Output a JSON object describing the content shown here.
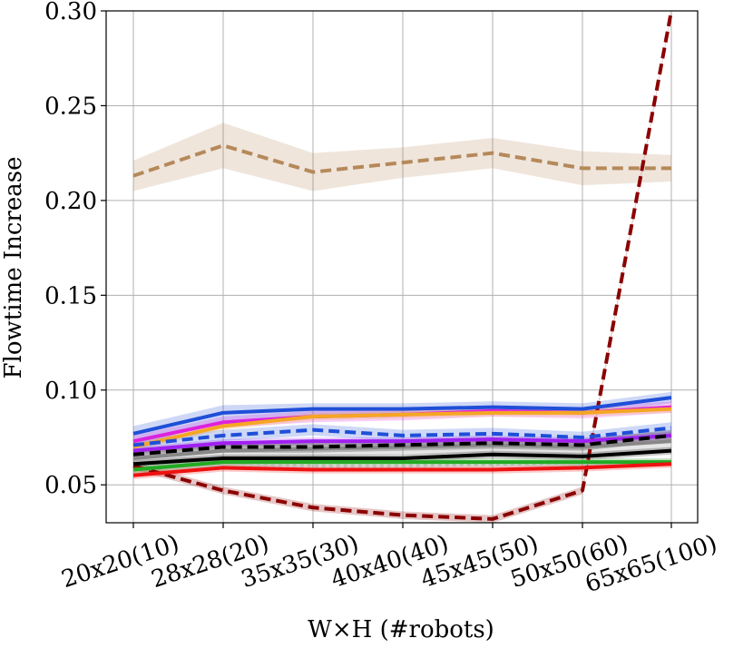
{
  "chart_data": {
    "type": "line",
    "title": "",
    "xlabel": "W×H (#robots)",
    "ylabel": "Flowtime Increase",
    "categories": [
      "20x20(10)",
      "28x28(20)",
      "35x35(30)",
      "40x40(40)",
      "45x45(50)",
      "50x50(60)",
      "65x65(100)"
    ],
    "ylim": [
      0.03,
      0.3
    ],
    "yticks": [
      "0.05",
      "0.10",
      "0.15",
      "0.20",
      "0.25",
      "0.30"
    ],
    "grid": true,
    "legend": "none",
    "series": [
      {
        "color": "#8b0000",
        "style": "dashed",
        "values": [
          0.06,
          0.047,
          0.038,
          0.034,
          0.032,
          0.047,
          0.3
        ],
        "band": [
          0.002,
          0.002,
          0.002,
          0.002,
          0.002,
          0.002,
          0.002
        ]
      },
      {
        "color": "#b5895a",
        "style": "dashed",
        "values": [
          0.213,
          0.229,
          0.215,
          0.22,
          0.225,
          0.217,
          0.217
        ],
        "band": [
          0.008,
          0.012,
          0.01,
          0.008,
          0.008,
          0.009,
          0.007
        ]
      },
      {
        "color": "#1f4fd8",
        "style": "solid",
        "values": [
          0.077,
          0.088,
          0.09,
          0.09,
          0.091,
          0.09,
          0.096
        ],
        "band": [
          0.004,
          0.004,
          0.003,
          0.003,
          0.003,
          0.003,
          0.003
        ]
      },
      {
        "color": "#dd22dd",
        "style": "solid",
        "values": [
          0.073,
          0.083,
          0.086,
          0.087,
          0.089,
          0.088,
          0.091
        ],
        "band": [
          0.003,
          0.003,
          0.003,
          0.003,
          0.003,
          0.003,
          0.003
        ]
      },
      {
        "color": "#f5a623",
        "style": "solid",
        "values": [
          0.07,
          0.081,
          0.086,
          0.087,
          0.088,
          0.088,
          0.09
        ],
        "band": [
          0.002,
          0.002,
          0.002,
          0.002,
          0.002,
          0.002,
          0.002
        ]
      },
      {
        "color": "#1f4fd8",
        "style": "dashed",
        "values": [
          0.071,
          0.076,
          0.079,
          0.076,
          0.077,
          0.075,
          0.08
        ],
        "band": [
          0.003,
          0.003,
          0.003,
          0.003,
          0.003,
          0.003,
          0.003
        ]
      },
      {
        "color": "#a020f0",
        "style": "solid",
        "values": [
          0.068,
          0.072,
          0.073,
          0.073,
          0.074,
          0.073,
          0.076
        ],
        "band": [
          0.002,
          0.002,
          0.002,
          0.002,
          0.002,
          0.002,
          0.002
        ]
      },
      {
        "color": "#888888",
        "style": "solid",
        "values": [
          0.064,
          0.068,
          0.069,
          0.07,
          0.071,
          0.07,
          0.073
        ],
        "band": [
          0.004,
          0.004,
          0.004,
          0.004,
          0.004,
          0.004,
          0.004
        ]
      },
      {
        "color": "#000000",
        "style": "dashed",
        "values": [
          0.066,
          0.07,
          0.07,
          0.071,
          0.072,
          0.071,
          0.076
        ],
        "band": [
          0.003,
          0.003,
          0.003,
          0.003,
          0.003,
          0.003,
          0.003
        ]
      },
      {
        "color": "#000000",
        "style": "solid",
        "values": [
          0.061,
          0.064,
          0.064,
          0.064,
          0.066,
          0.065,
          0.068
        ],
        "band": [
          0.002,
          0.002,
          0.002,
          0.002,
          0.002,
          0.002,
          0.002
        ]
      },
      {
        "color": "#bbbbbb",
        "style": "dotted",
        "values": [
          0.058,
          0.061,
          0.06,
          0.06,
          0.061,
          0.061,
          0.062
        ],
        "band": [
          0.002,
          0.002,
          0.002,
          0.002,
          0.002,
          0.002,
          0.002
        ]
      },
      {
        "color": "#22aa22",
        "style": "solid",
        "values": [
          0.058,
          0.062,
          0.062,
          0.062,
          0.062,
          0.062,
          0.062
        ],
        "band": [
          0.002,
          0.002,
          0.002,
          0.002,
          0.002,
          0.002,
          0.002
        ]
      },
      {
        "color": "#ee1111",
        "style": "solid",
        "values": [
          0.055,
          0.059,
          0.058,
          0.058,
          0.058,
          0.059,
          0.061
        ],
        "band": [
          0.002,
          0.002,
          0.002,
          0.002,
          0.002,
          0.002,
          0.002
        ]
      }
    ]
  }
}
